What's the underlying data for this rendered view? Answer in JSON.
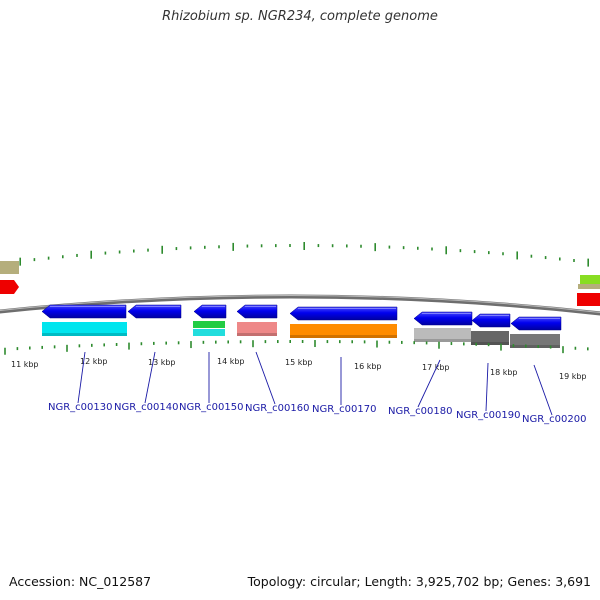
{
  "title": "Rhizobium sp. NGR234, complete genome",
  "footer": {
    "accession": "Accession: NC_012587",
    "stats": "Topology: circular; Length: 3,925,702 bp; Genes: 3,691"
  },
  "colors": {
    "backbone": "#7a7a7a",
    "tick": "#2e8b2e",
    "label": "#1a1aa6",
    "arrow": "#0000ee"
  },
  "scale_labels": [
    "11 kbp",
    "12 kbp",
    "13 kbp",
    "14 kbp",
    "15 kbp",
    "16 kbp",
    "17 kbp",
    "18 kbp",
    "19 kbp"
  ],
  "genes": [
    {
      "name": "NGR_c00130",
      "arrow_color": "#0000ee",
      "feature_color": "#00e5ee"
    },
    {
      "name": "NGR_c00140",
      "arrow_color": "#0000ee",
      "feature_color": ""
    },
    {
      "name": "NGR_c00150",
      "arrow_color": "#0000ee",
      "feature_color": "#22cc44"
    },
    {
      "name": "NGR_c00160",
      "arrow_color": "#0000ee",
      "feature_color": "#ee8888"
    },
    {
      "name": "NGR_c00170",
      "arrow_color": "#0000ee",
      "feature_color": "#ff8c00"
    },
    {
      "name": "NGR_c00180",
      "arrow_color": "#0000ee",
      "feature_color": "#bbbbbb"
    },
    {
      "name": "NGR_c00190",
      "arrow_color": "#0000ee",
      "feature_color": "#666666"
    },
    {
      "name": "NGR_c00200",
      "arrow_color": "#0000ee",
      "feature_color": "#777777"
    }
  ]
}
